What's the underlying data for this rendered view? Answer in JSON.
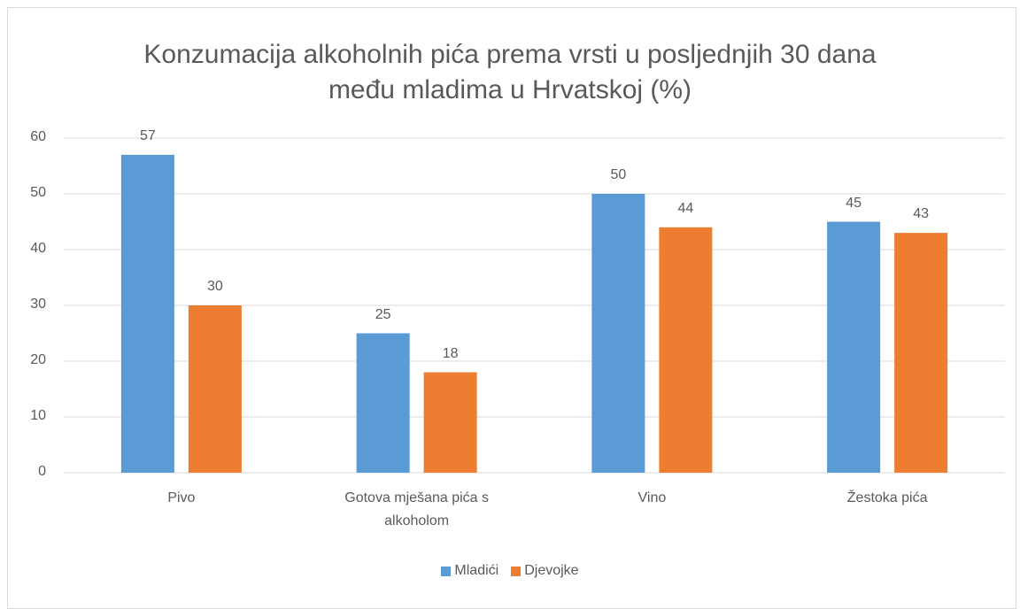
{
  "chart_data": {
    "type": "bar",
    "title": "Konzumacija alkoholnih pića prema vrsti u posljednjih 30 dana među mladima u Hrvatskoj (%)",
    "categories": [
      "Pivo",
      "Gotova mješana pića s alkoholom",
      "Vino",
      "Žestoka pića"
    ],
    "series": [
      {
        "name": "Mladići",
        "color": "#5b9bd5",
        "values": [
          57,
          25,
          50,
          45
        ]
      },
      {
        "name": "Djevojke",
        "color": "#ed7d31",
        "values": [
          30,
          18,
          44,
          43
        ]
      }
    ],
    "ylim": [
      0,
      60
    ],
    "yticks": [
      0,
      10,
      20,
      30,
      40,
      50,
      60
    ],
    "grid": true,
    "legend": "bottom"
  }
}
